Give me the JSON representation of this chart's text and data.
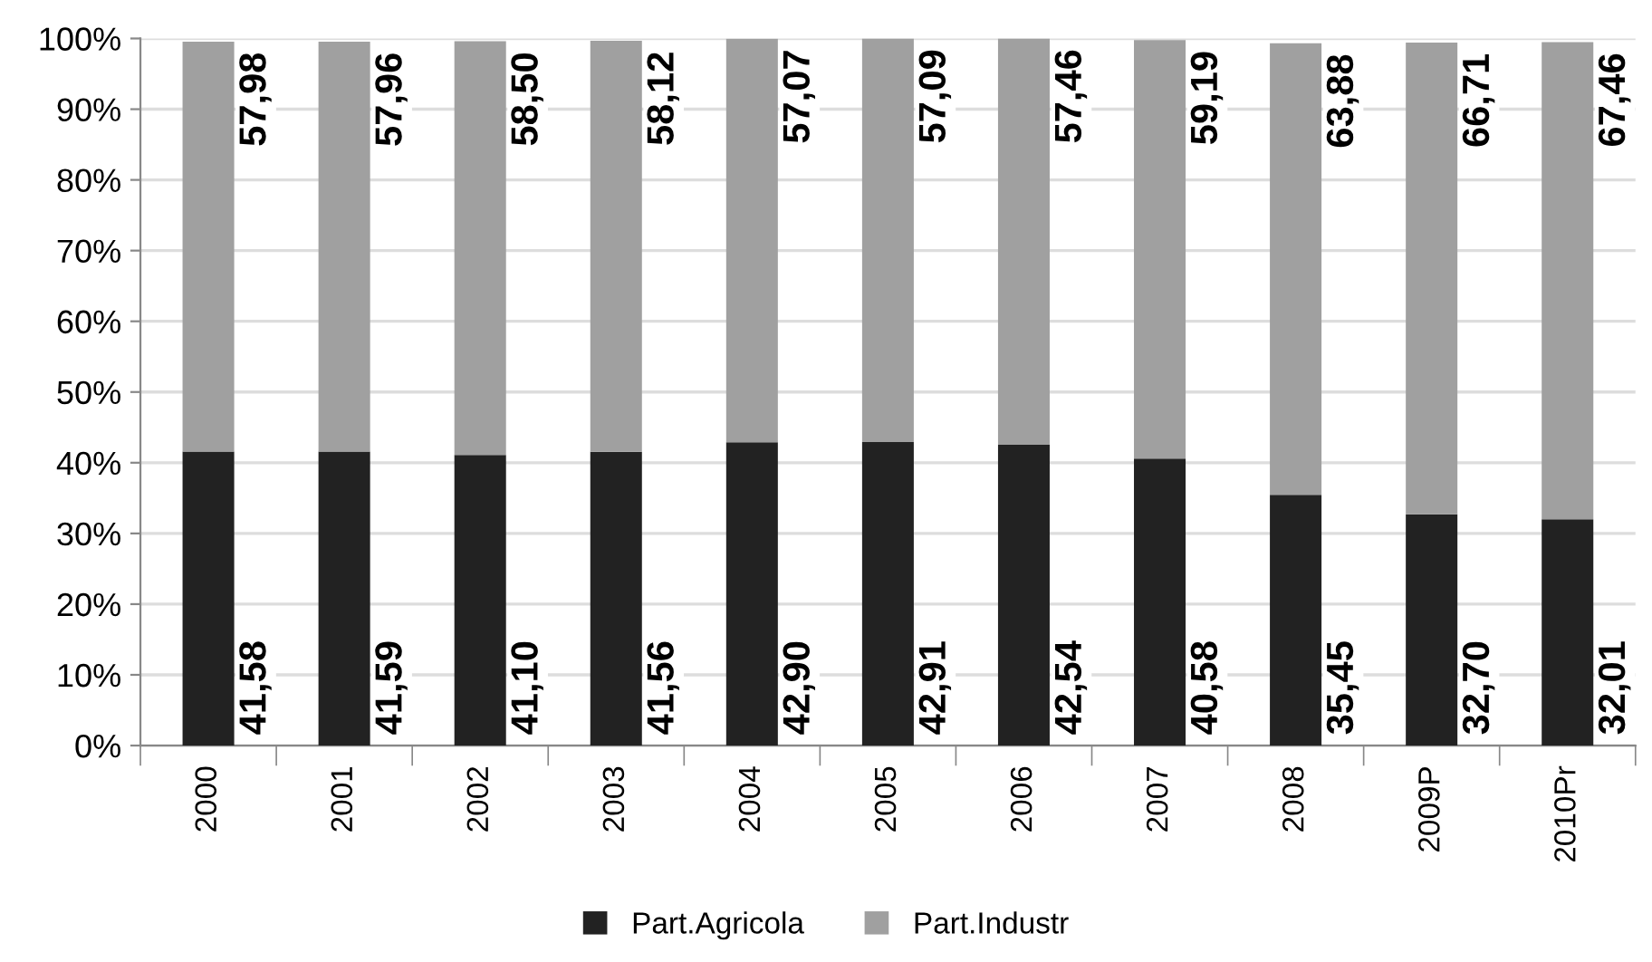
{
  "chart_data": {
    "type": "bar",
    "stacked": true,
    "categories": [
      "2000",
      "2001",
      "2002",
      "2003",
      "2004",
      "2005",
      "2006",
      "2007",
      "2008",
      "2009P",
      "2010Pr"
    ],
    "series": [
      {
        "name": "Part.Agricola",
        "color": "#222222",
        "values": [
          41.58,
          41.59,
          41.1,
          41.56,
          42.9,
          42.91,
          42.54,
          40.58,
          35.45,
          32.7,
          32.01
        ],
        "value_labels": [
          "41,58",
          "41,59",
          "41,10",
          "41,56",
          "42,90",
          "42,91",
          "42,54",
          "40,58",
          "35,45",
          "32,70",
          "32,01"
        ]
      },
      {
        "name": "Part.Industr",
        "color": "#a0a0a0",
        "values": [
          57.98,
          57.96,
          58.5,
          58.12,
          57.07,
          57.09,
          57.46,
          59.19,
          63.88,
          66.71,
          67.46
        ],
        "value_labels": [
          "57,98",
          "57,96",
          "58,50",
          "58,12",
          "57,07",
          "57,09",
          "57,46",
          "59,19",
          "63,88",
          "66,71",
          "67,46"
        ]
      }
    ],
    "ylim": [
      0,
      100
    ],
    "yticks": [
      {
        "value": 0,
        "label": "0%"
      },
      {
        "value": 10,
        "label": "10%"
      },
      {
        "value": 20,
        "label": "20%"
      },
      {
        "value": 30,
        "label": "30%"
      },
      {
        "value": 40,
        "label": "40%"
      },
      {
        "value": 50,
        "label": "50%"
      },
      {
        "value": 60,
        "label": "60%"
      },
      {
        "value": 70,
        "label": "70%"
      },
      {
        "value": 80,
        "label": "80%"
      },
      {
        "value": 90,
        "label": "90%"
      },
      {
        "value": 100,
        "label": "100%"
      }
    ],
    "grid": "y",
    "legend": "bottom"
  }
}
